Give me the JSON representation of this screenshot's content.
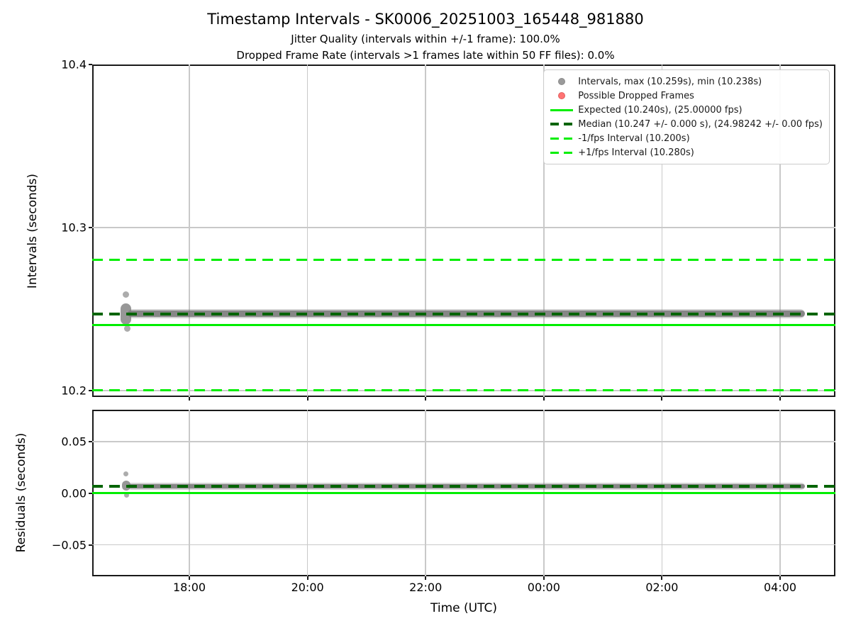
{
  "title": "Timestamp Intervals - SK0006_20251003_165448_981880",
  "subtitle_line1": "Jitter Quality (intervals within +/-1 frame): 100.0%",
  "subtitle_line2": "Dropped Frame Rate (intervals >1 frames late within 50 FF files): 0.0%",
  "colors": {
    "expected_green": "#00ee00",
    "median_darkgreen": "#006400",
    "scatter_gray": "#808080",
    "dropped_red": "#ff7373",
    "grid_gray": "#c9c9c9",
    "spine_black": "#1a1a1a"
  },
  "legend": {
    "items": [
      {
        "marker": "dot",
        "color": "#9a9a9a",
        "edge": "#8a8a8a",
        "label": "Intervals, max (10.259s), min (10.238s)"
      },
      {
        "marker": "dot",
        "color": "#ff7373",
        "edge": "#e05f5f",
        "label": "Possible Dropped Frames"
      },
      {
        "marker": "solid",
        "color": "#00ee00",
        "edge": "#00ee00",
        "label": "Expected (10.240s), (25.00000 fps)"
      },
      {
        "marker": "dashed",
        "color": "#006400",
        "edge": "#006400",
        "label": "Median (10.247 +/- 0.000 s), (24.98242 +/- 0.00 fps)"
      },
      {
        "marker": "dashed",
        "color": "#00ee00",
        "edge": "#00ee00",
        "label": "-1/fps Interval (10.200s)"
      },
      {
        "marker": "dashed",
        "color": "#00ee00",
        "edge": "#00ee00",
        "label": "+1/fps Interval (10.280s)"
      }
    ]
  },
  "x_axis": {
    "label": "Time (UTC)",
    "range_hours": [
      16.355,
      28.936
    ],
    "tick_hours": [
      18,
      20,
      22,
      24,
      26,
      28
    ],
    "tick_labels": [
      "18:00",
      "20:00",
      "22:00",
      "00:00",
      "02:00",
      "04:00"
    ],
    "grid": true
  },
  "chart_data": [
    {
      "type": "scatter",
      "name": "intervals-plot",
      "ylabel": "Intervals (seconds)",
      "ylim": [
        10.196,
        10.4
      ],
      "yticks": [
        10.2,
        10.3,
        10.4
      ],
      "ytick_labels": [
        "10.2",
        "10.3",
        "10.4"
      ],
      "grid_yticks": [
        10.2,
        10.3
      ],
      "lines": [
        {
          "name": "plus-1fps-interval",
          "value": 10.28,
          "style": "dashed",
          "color": "#00ee00",
          "width": 3
        },
        {
          "name": "median",
          "value": 10.247,
          "style": "dashed",
          "color": "#006400",
          "width": 4
        },
        {
          "name": "expected",
          "value": 10.24,
          "style": "solid",
          "color": "#00ee00",
          "width": 3
        },
        {
          "name": "minus-1fps-interval",
          "value": 10.2,
          "style": "dashed",
          "color": "#00ee00",
          "width": 3
        }
      ],
      "scatter": {
        "color": "#808080",
        "median": 10.247,
        "max": 10.259,
        "min": 10.238,
        "band": {
          "t_start": 16.955,
          "t_end": 28.42,
          "value": 10.247,
          "spread": 0.002
        },
        "cluster": {
          "t": 16.93,
          "v_min": 10.2405,
          "v_max": 10.2535
        },
        "points": [
          {
            "t": 16.92,
            "v": 10.259
          },
          {
            "t": 16.95,
            "v": 10.238
          }
        ]
      }
    },
    {
      "type": "scatter",
      "name": "residuals-plot",
      "ylabel": "Residuals (seconds)",
      "ylim": [
        -0.0805,
        0.0809
      ],
      "yticks": [
        -0.05,
        0,
        0.05
      ],
      "ytick_labels": [
        "−0.05",
        "0.00",
        "0.05"
      ],
      "grid_yticks": [
        -0.05,
        0.05
      ],
      "lines": [
        {
          "name": "median-residual",
          "value": 0.0068,
          "style": "dashed",
          "color": "#006400",
          "width": 4
        },
        {
          "name": "zero-residual",
          "value": 0.0,
          "style": "solid",
          "color": "#00ee00",
          "width": 3
        }
      ],
      "scatter": {
        "color": "#808080",
        "band": {
          "t_start": 16.955,
          "t_end": 28.42,
          "value": 0.0068,
          "spread": 0.0015
        },
        "cluster": {
          "t": 16.93,
          "v_min": 0.0027,
          "v_max": 0.0123
        },
        "points": [
          {
            "t": 16.92,
            "v": 0.019
          },
          {
            "t": 16.94,
            "v": -0.002
          }
        ]
      }
    }
  ]
}
